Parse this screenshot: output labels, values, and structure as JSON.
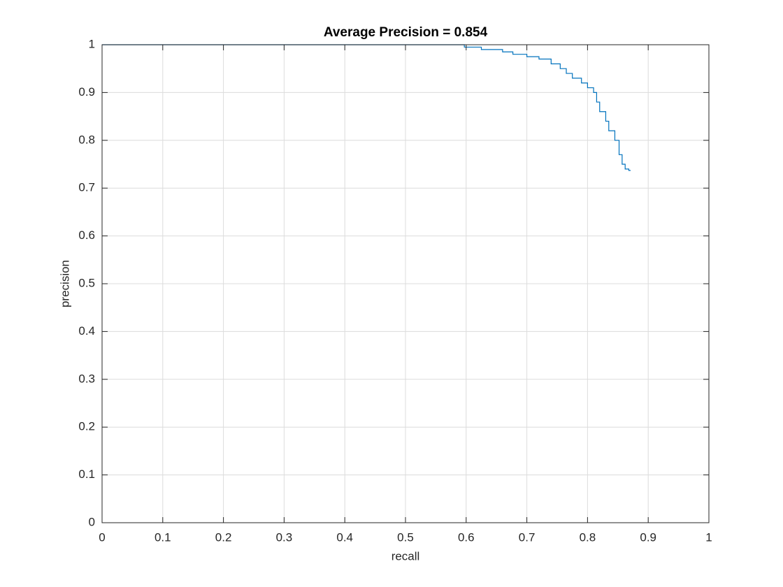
{
  "chart_data": {
    "type": "line",
    "title": "Average Precision = 0.854",
    "x_label": "recall",
    "y_label": "precision",
    "x": [
      0,
      0.597,
      0.597,
      0.625,
      0.625,
      0.66,
      0.66,
      0.677,
      0.677,
      0.7,
      0.7,
      0.72,
      0.72,
      0.74,
      0.74,
      0.755,
      0.755,
      0.765,
      0.765,
      0.775,
      0.775,
      0.79,
      0.79,
      0.8,
      0.8,
      0.81,
      0.81,
      0.815,
      0.815,
      0.82,
      0.82,
      0.83,
      0.83,
      0.835,
      0.835,
      0.845,
      0.845,
      0.852,
      0.852,
      0.857,
      0.857,
      0.862,
      0.862,
      0.868,
      0.868,
      0.871
    ],
    "series": [
      {
        "color": "#0072bd",
        "values": [
          1,
          1,
          0.995,
          0.995,
          0.99,
          0.99,
          0.985,
          0.985,
          0.98,
          0.98,
          0.975,
          0.975,
          0.97,
          0.97,
          0.96,
          0.96,
          0.95,
          0.95,
          0.94,
          0.94,
          0.93,
          0.93,
          0.92,
          0.92,
          0.91,
          0.91,
          0.9,
          0.9,
          0.88,
          0.88,
          0.86,
          0.86,
          0.84,
          0.84,
          0.82,
          0.82,
          0.8,
          0.8,
          0.77,
          0.77,
          0.75,
          0.75,
          0.74,
          0.74,
          0.737,
          0.737
        ]
      }
    ],
    "xlim": [
      0,
      1
    ],
    "ylim": [
      0,
      1
    ],
    "xticks": [
      0,
      0.1,
      0.2,
      0.3,
      0.4,
      0.5,
      0.6,
      0.7,
      0.8,
      0.9,
      1
    ],
    "yticks": [
      0,
      0.1,
      0.2,
      0.3,
      0.4,
      0.5,
      0.6,
      0.7,
      0.8,
      0.9,
      1
    ],
    "grid": true
  }
}
